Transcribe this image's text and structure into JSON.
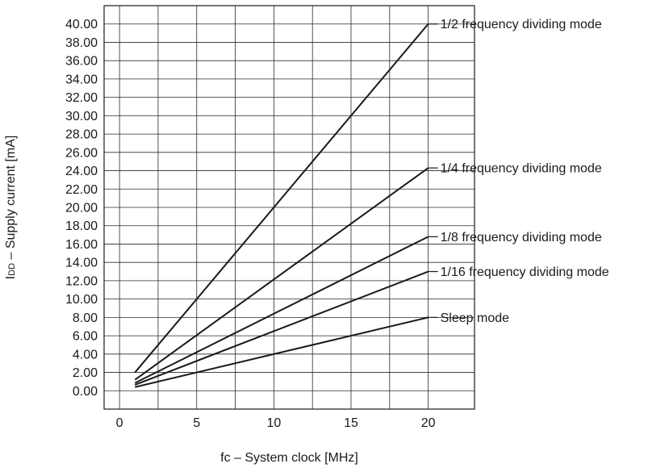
{
  "chart_data": {
    "type": "line",
    "title": "",
    "xlabel": "fc – System clock [MHz]",
    "ylabel_main": "I",
    "ylabel_sub": "DD",
    "ylabel_rest": " – Supply current [mA]",
    "xlim": [
      -1,
      23
    ],
    "ylim": [
      -2,
      42
    ],
    "x_ticks": [
      0,
      5,
      10,
      15,
      20
    ],
    "x_tick_labels": [
      "0",
      "5",
      "10",
      "15",
      "20"
    ],
    "y_ticks": [
      0,
      2,
      4,
      6,
      8,
      10,
      12,
      14,
      16,
      18,
      20,
      22,
      24,
      26,
      28,
      30,
      32,
      34,
      36,
      38,
      40
    ],
    "y_tick_labels": [
      "0.00",
      "2.00",
      "4.00",
      "6.00",
      "8.00",
      "10.00",
      "12.00",
      "14.00",
      "16.00",
      "18.00",
      "20.00",
      "22.00",
      "24.00",
      "26.00",
      "28.00",
      "30.00",
      "32.00",
      "34.00",
      "36.00",
      "38.00",
      "40.00"
    ],
    "grid": true,
    "series": [
      {
        "name": "1/2 frequency dividing mode",
        "x": [
          1,
          20
        ],
        "y": [
          2.0,
          40.0
        ]
      },
      {
        "name": "1/4 frequency dividing mode",
        "x": [
          1,
          20
        ],
        "y": [
          1.2,
          24.3
        ]
      },
      {
        "name": "1/8 frequency dividing mode",
        "x": [
          1,
          20
        ],
        "y": [
          0.85,
          16.8
        ]
      },
      {
        "name": "1/16 frequency dividing mode",
        "x": [
          1,
          20
        ],
        "y": [
          0.65,
          13.0
        ]
      },
      {
        "name": "Sleep mode",
        "x": [
          1,
          20
        ],
        "y": [
          0.4,
          8.0
        ]
      }
    ]
  }
}
